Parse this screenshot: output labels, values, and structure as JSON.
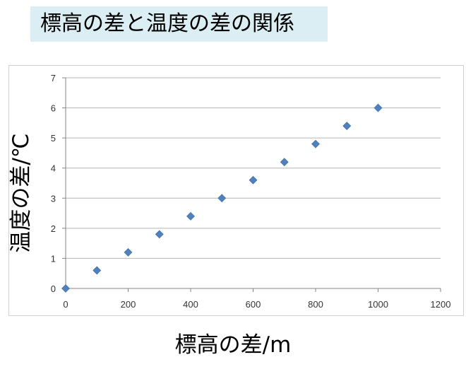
{
  "page": {
    "title": "標高の差と温度の差の関係"
  },
  "colors": {
    "title_bg": "#daeef3",
    "marker": "#4f81bd",
    "grid": "#b4b4b4"
  },
  "chart_data": {
    "type": "scatter",
    "title": "",
    "xlabel": "標高の差/m",
    "ylabel": "温度の差/℃",
    "xlim": [
      0,
      1200
    ],
    "ylim": [
      0,
      7
    ],
    "xticks": [
      0,
      200,
      400,
      600,
      800,
      1000,
      1200
    ],
    "yticks": [
      0,
      1,
      2,
      3,
      4,
      5,
      6,
      7
    ],
    "grid": "horizontal",
    "marker": "diamond",
    "legend": "none",
    "points": [
      {
        "x": 0,
        "y": 0
      },
      {
        "x": 100,
        "y": 0.6
      },
      {
        "x": 200,
        "y": 1.2
      },
      {
        "x": 300,
        "y": 1.8
      },
      {
        "x": 400,
        "y": 2.4
      },
      {
        "x": 500,
        "y": 3.0
      },
      {
        "x": 600,
        "y": 3.6
      },
      {
        "x": 700,
        "y": 4.2
      },
      {
        "x": 800,
        "y": 4.8
      },
      {
        "x": 900,
        "y": 5.4
      },
      {
        "x": 1000,
        "y": 6.0
      }
    ]
  }
}
